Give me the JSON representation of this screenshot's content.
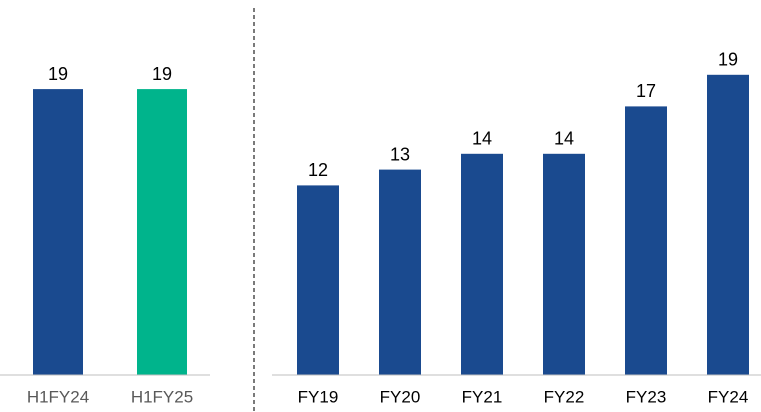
{
  "chart_data": [
    {
      "type": "bar",
      "categories": [
        "H1FY24",
        "H1FY25"
      ],
      "values": [
        19,
        19
      ],
      "colors": [
        "#1a4a8f",
        "#00b48c"
      ],
      "ylim": [
        0,
        21
      ]
    },
    {
      "type": "bar",
      "categories": [
        "FY19",
        "FY20",
        "FY21",
        "FY22",
        "FY23",
        "FY24"
      ],
      "values": [
        12,
        13,
        14,
        14,
        17,
        19
      ],
      "colors": [
        "#1a4a8f",
        "#1a4a8f",
        "#1a4a8f",
        "#1a4a8f",
        "#1a4a8f",
        "#1a4a8f"
      ],
      "ylim": [
        0,
        20
      ]
    }
  ]
}
